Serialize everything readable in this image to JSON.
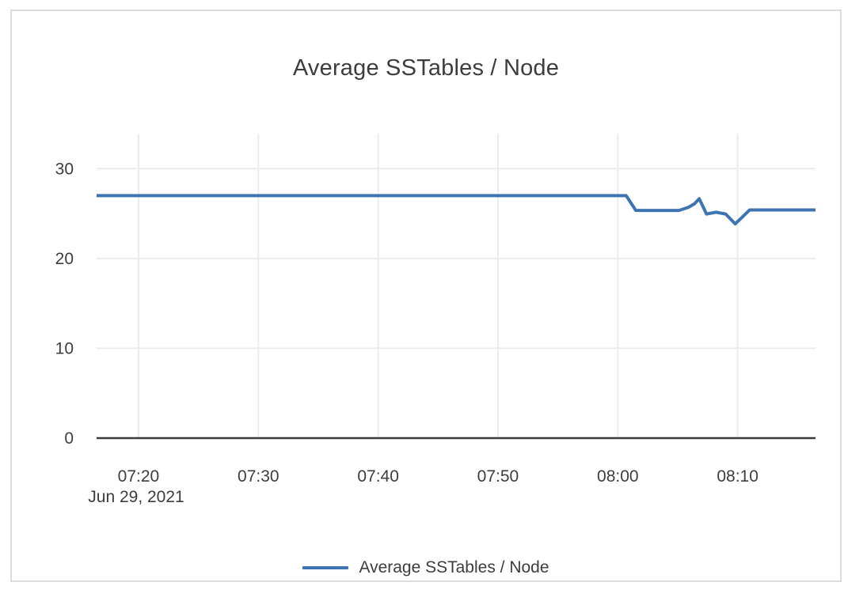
{
  "card": {
    "background": "#ffffff",
    "border_color": "#dcdcdc"
  },
  "colors": {
    "series_line": "#3e74b2",
    "gridline": "#ececec",
    "axis_line": "#3a3a3a",
    "text": "#3d3d3d"
  },
  "chart_data": {
    "type": "line",
    "title": "Average SSTables / Node",
    "date_label": "Jun 29, 2021",
    "x_unit": "minutes after 07:00, Jun 29 2021",
    "xlim": [
      16.5,
      76.5
    ],
    "ylim": [
      0,
      33.9
    ],
    "grid": true,
    "legend_position": "bottom",
    "xticks": [
      {
        "m": 20,
        "label": "07:20"
      },
      {
        "m": 30,
        "label": "07:30"
      },
      {
        "m": 40,
        "label": "07:40"
      },
      {
        "m": 50,
        "label": "07:50"
      },
      {
        "m": 60,
        "label": "08:00"
      },
      {
        "m": 70,
        "label": "08:10"
      }
    ],
    "yticks": [
      {
        "v": 0,
        "label": "0"
      },
      {
        "v": 10,
        "label": "10"
      },
      {
        "v": 20,
        "label": "20"
      },
      {
        "v": 30,
        "label": "30"
      }
    ],
    "series": [
      {
        "name": "Average SSTables / Node",
        "color": "#3e74b2",
        "points": [
          [
            16.5,
            27.0
          ],
          [
            60.7,
            27.0
          ],
          [
            61.5,
            25.35
          ],
          [
            65.1,
            25.35
          ],
          [
            65.9,
            25.7
          ],
          [
            66.4,
            26.1
          ],
          [
            66.8,
            26.65
          ],
          [
            67.4,
            24.95
          ],
          [
            68.2,
            25.15
          ],
          [
            69.0,
            24.95
          ],
          [
            69.4,
            24.4
          ],
          [
            69.8,
            23.85
          ],
          [
            70.3,
            24.5
          ],
          [
            71.0,
            25.4
          ],
          [
            76.5,
            25.4
          ]
        ]
      }
    ]
  }
}
